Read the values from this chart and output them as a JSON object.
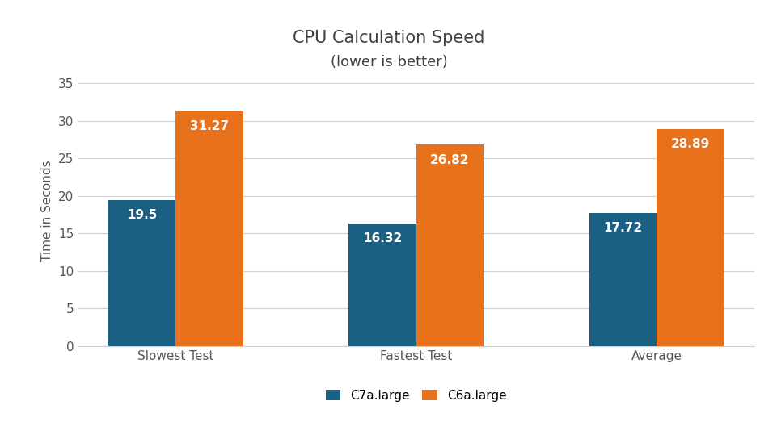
{
  "title_line1": "CPU Calculation Speed",
  "title_line2": "(lower is better)",
  "categories": [
    "Slowest Test",
    "Fastest Test",
    "Average"
  ],
  "c7a_values": [
    19.5,
    16.32,
    17.72
  ],
  "c6a_values": [
    31.27,
    26.82,
    28.89
  ],
  "c7a_label": "C7a.large",
  "c6a_label": "C6a.large",
  "c7a_color": "#1B5F82",
  "c6a_color": "#E8721C",
  "ylabel": "Time in Seconds",
  "ylim": [
    0,
    36
  ],
  "yticks": [
    0,
    5,
    10,
    15,
    20,
    25,
    30,
    35
  ],
  "bar_width": 0.28,
  "label_color": "#ffffff",
  "label_fontsize": 11,
  "title_fontsize": 15,
  "subtitle_fontsize": 13,
  "axis_label_fontsize": 11,
  "tick_fontsize": 11,
  "legend_fontsize": 11,
  "background_color": "#ffffff",
  "grid_color": "#d0d0d0"
}
